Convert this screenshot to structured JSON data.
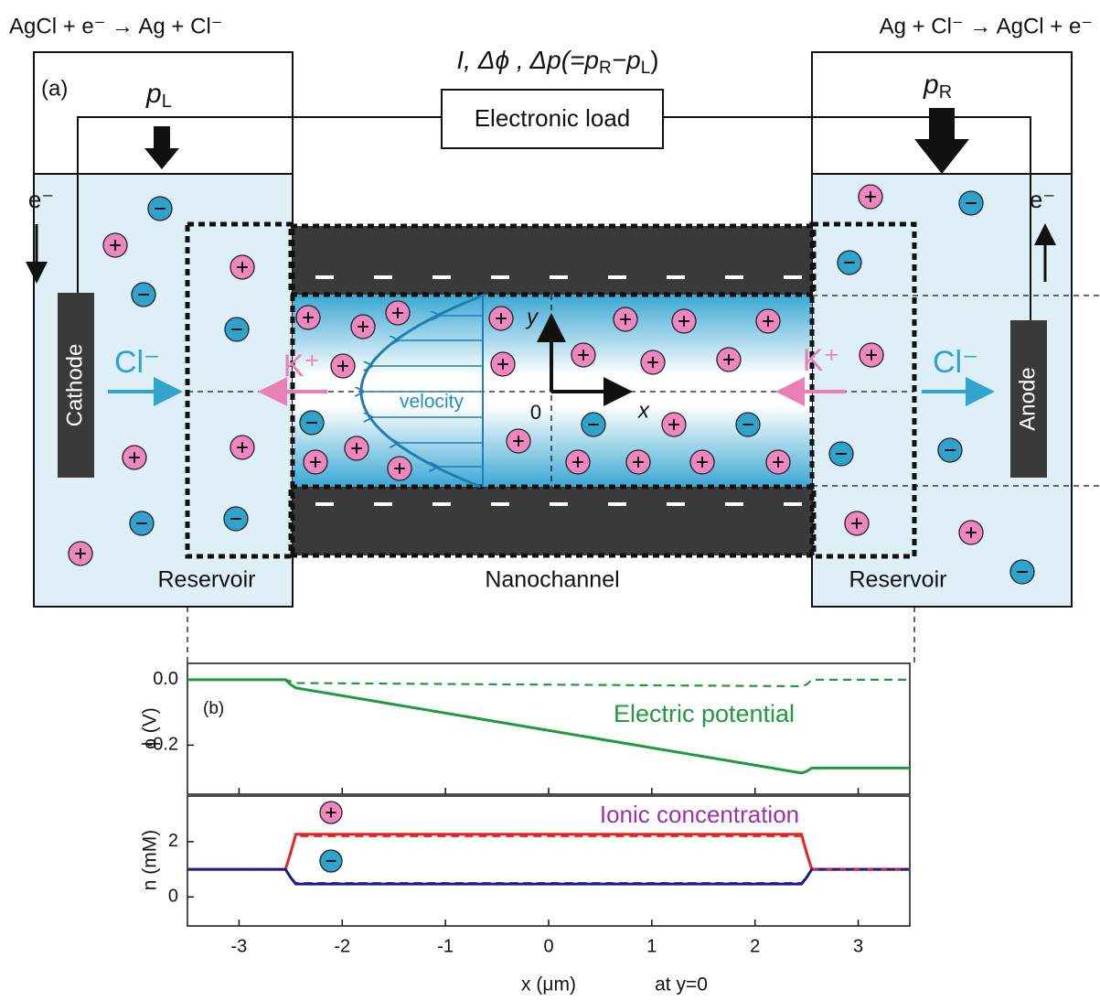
{
  "panel_a": {
    "label": "(a)",
    "reaction_left": "AgCl + e⁻ → Ag + Cl⁻",
    "reaction_right": "Ag + Cl⁻ → AgCl + e⁻",
    "measured": [
      "I, Δϕ , Δp(=p",
      "R",
      "−p",
      "L",
      ")"
    ],
    "pressure_left": [
      "p",
      "L"
    ],
    "pressure_right": [
      "p",
      "R"
    ],
    "load": "Electronic load",
    "electron_left": "e⁻",
    "electron_right": "e⁻",
    "cathode": "Cathode",
    "anode": "Anode",
    "anion_left": "Cl⁻",
    "anion_right": "Cl⁻",
    "cation_left": "K⁺",
    "cation_right": "K⁺",
    "velocity": "velocity",
    "axis_y": "y",
    "axis_x": "x",
    "origin": "0",
    "reservoir_left": "Reservoir",
    "channel": "Nanochannel",
    "reservoir_right": "Reservoir"
  },
  "chart_data": [
    {
      "type": "line",
      "label": "(b)",
      "annotation": "Electric potential",
      "ylabel": "ϕ (V)",
      "xlim": [
        -3.5,
        3.5
      ],
      "ylim": [
        -0.35,
        0.05
      ],
      "yticks": [
        {
          "value": 0,
          "label": "0.0"
        },
        -0.2
      ],
      "x": [
        -3.5,
        -2.55,
        -2.5,
        -2.45,
        2.45,
        2.5,
        2.55,
        3.5
      ],
      "series": [
        {
          "color": "#1f9a3c",
          "style": "solid",
          "values": [
            0,
            0,
            -0.015,
            -0.025,
            -0.285,
            -0.28,
            -0.27,
            -0.27
          ]
        },
        {
          "color": "#1f9a3c",
          "style": "dashed",
          "values": [
            0,
            0,
            -0.005,
            -0.01,
            -0.02,
            -0.015,
            0,
            0
          ]
        }
      ]
    },
    {
      "type": "line",
      "annotation": "Ionic concentration",
      "ylabel": "n (mM)",
      "xlabel": "x (μm)",
      "xnote": "at y=0",
      "xlim": [
        -3.5,
        3.5
      ],
      "ylim": [
        -1.05,
        3.65
      ],
      "yticks": [
        0,
        2
      ],
      "xticks": [
        -3,
        -2,
        -1,
        0,
        1,
        2,
        3
      ],
      "x": [
        -3.5,
        -2.55,
        -2.5,
        -2.45,
        2.45,
        2.5,
        2.55,
        3.5
      ],
      "series": [
        {
          "color": "#e8231f",
          "style": "solid",
          "values": [
            1,
            1,
            1.6,
            2.27,
            2.27,
            1.6,
            1,
            1
          ]
        },
        {
          "color": "#1c1c8e",
          "style": "solid",
          "values": [
            1,
            1,
            0.7,
            0.47,
            0.47,
            0.7,
            1,
            1
          ]
        },
        {
          "color": "#e8231f",
          "style": "dashed",
          "values": [
            1,
            1,
            1.6,
            2.2,
            2.2,
            1.6,
            1,
            1
          ]
        },
        {
          "color": "#1c1c8e",
          "style": "dashed",
          "values": [
            1,
            1,
            0.7,
            0.5,
            0.5,
            0.7,
            1,
            1
          ]
        }
      ]
    }
  ]
}
